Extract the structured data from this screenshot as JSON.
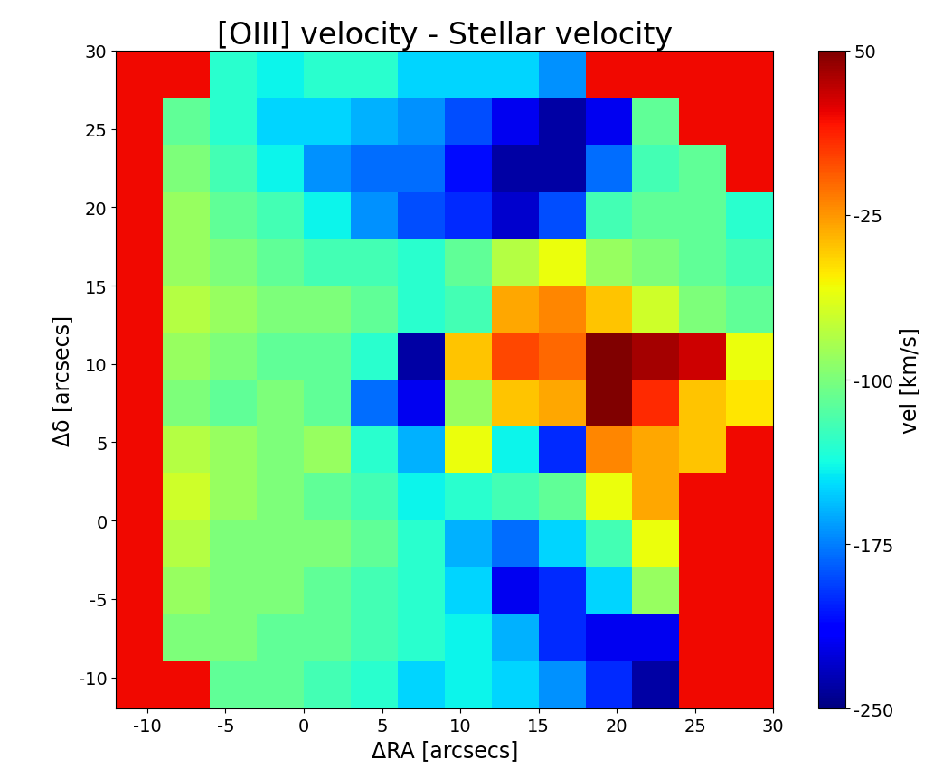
{
  "chart_data": {
    "type": "heatmap",
    "title": "[OIII] velocity - Stellar velocity",
    "x_label": "ΔRA [arcsecs]",
    "y_label": "Δδ [arcsecs]",
    "color": "jet",
    "x_edges": [
      -12,
      -9,
      -6,
      -3,
      0,
      3,
      6,
      9,
      12,
      15,
      18,
      21,
      24,
      27,
      30
    ],
    "y_edges": [
      -12,
      -9,
      -6,
      -3,
      0,
      3,
      6,
      9,
      12,
      15,
      18,
      21,
      24,
      27,
      30
    ],
    "cells": [
      [
        20,
        20,
        -110,
        -110,
        -120,
        -130,
        -150,
        -140,
        -150,
        -170,
        -200,
        -240,
        20,
        20
      ],
      [
        20,
        -100,
        -100,
        -110,
        -110,
        -120,
        -130,
        -140,
        -160,
        -200,
        -220,
        -220,
        20,
        20
      ],
      [
        20,
        -90,
        -100,
        -100,
        -110,
        -120,
        -130,
        -150,
        -220,
        -200,
        -150,
        -90,
        20,
        20
      ],
      [
        20,
        -80,
        -100,
        -100,
        -100,
        -110,
        -130,
        -160,
        -180,
        -150,
        -120,
        -60,
        20,
        20
      ],
      [
        20,
        -70,
        -90,
        -100,
        -110,
        -120,
        -140,
        -130,
        -120,
        -110,
        -60,
        -30,
        20,
        20
      ],
      [
        20,
        -80,
        -90,
        -100,
        -90,
        -130,
        -160,
        -60,
        -140,
        -200,
        -20,
        -30,
        -40,
        20
      ],
      [
        20,
        -100,
        -110,
        -100,
        -110,
        -180,
        -220,
        -90,
        -40,
        -30,
        50,
        10,
        -40,
        -50
      ],
      [
        20,
        -90,
        -100,
        -110,
        -110,
        -130,
        -240,
        -40,
        0,
        -10,
        50,
        40,
        30,
        -60
      ],
      [
        20,
        -80,
        -90,
        -100,
        -100,
        -110,
        -130,
        -120,
        -30,
        -20,
        -40,
        -70,
        -100,
        -110
      ],
      [
        20,
        -90,
        -100,
        -110,
        -120,
        -120,
        -130,
        -110,
        -80,
        -60,
        -90,
        -100,
        -110,
        -120
      ],
      [
        20,
        -90,
        -110,
        -120,
        -140,
        -170,
        -190,
        -200,
        -230,
        -190,
        -120,
        -110,
        -110,
        -130
      ],
      [
        20,
        -100,
        -120,
        -140,
        -170,
        -180,
        -180,
        -210,
        -240,
        -240,
        -180,
        -120,
        -110,
        20
      ],
      [
        20,
        -110,
        -130,
        -150,
        -150,
        -160,
        -170,
        -190,
        -220,
        -240,
        -220,
        -110,
        20,
        20
      ],
      [
        20,
        20,
        -130,
        -140,
        -130,
        -130,
        -150,
        -150,
        -150,
        -170,
        20,
        20,
        20,
        20
      ]
    ],
    "xlim": [
      -12,
      30
    ],
    "ylim": [
      -12,
      30
    ],
    "xticks": [
      -10,
      -5,
      0,
      5,
      10,
      15,
      20,
      25,
      30
    ],
    "yticks": [
      -10,
      -5,
      0,
      5,
      10,
      15,
      20,
      25,
      30
    ],
    "colorbar_label": "vel [km/s]",
    "colorbar_range": [
      -250,
      50
    ],
    "colorbar_ticks": [
      -250,
      -175,
      -100,
      -25,
      50
    ]
  }
}
